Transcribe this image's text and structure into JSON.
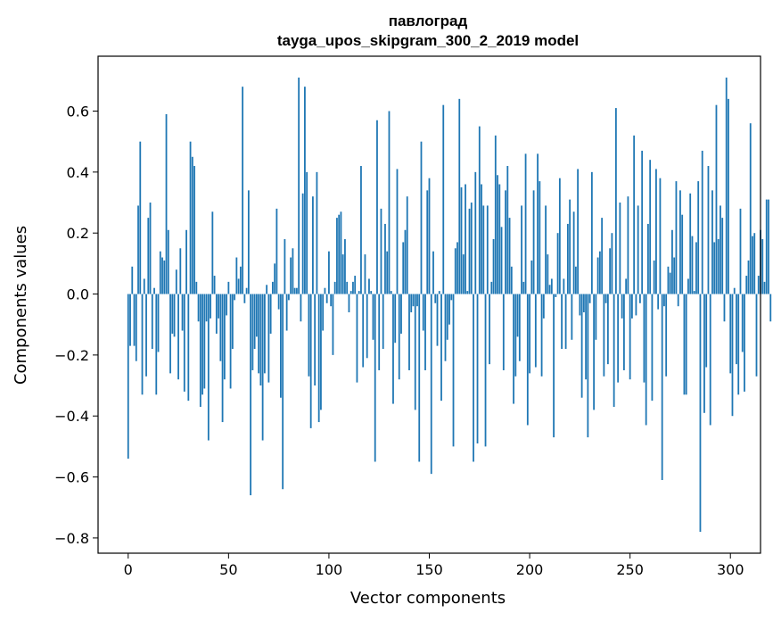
{
  "chart_data": {
    "type": "bar",
    "title": "павлоград",
    "subtitle": "tayga_upos_skipgram_300_2_2019 model",
    "xlabel": "Vector components",
    "ylabel": "Components values",
    "xlim": [
      -15,
      315
    ],
    "ylim": [
      -0.85,
      0.78
    ],
    "xticks": [
      0,
      50,
      100,
      150,
      200,
      250,
      300
    ],
    "xtick_labels": [
      "0",
      "50",
      "100",
      "150",
      "200",
      "250",
      "300"
    ],
    "yticks": [
      -0.8,
      -0.6,
      -0.4,
      -0.2,
      0.0,
      0.2,
      0.4,
      0.6
    ],
    "ytick_labels": [
      "−0.8",
      "−0.6",
      "−0.4",
      "−0.2",
      "0.0",
      "0.2",
      "0.4",
      "0.6"
    ],
    "bar_color": "#1f77b4",
    "grid": false,
    "values": [
      -0.54,
      -0.17,
      0.09,
      -0.17,
      -0.22,
      0.29,
      0.5,
      -0.33,
      0.05,
      -0.27,
      0.25,
      0.3,
      -0.18,
      0.02,
      -0.33,
      -0.19,
      0.14,
      0.12,
      0.11,
      0.59,
      0.21,
      -0.26,
      -0.13,
      -0.14,
      0.08,
      -0.28,
      0.15,
      -0.12,
      -0.32,
      0.21,
      -0.35,
      0.5,
      0.45,
      0.42,
      0.04,
      -0.09,
      -0.37,
      -0.33,
      -0.31,
      -0.09,
      -0.48,
      -0.08,
      0.27,
      0.06,
      -0.13,
      -0.08,
      -0.22,
      -0.42,
      -0.28,
      -0.07,
      0.04,
      -0.31,
      -0.18,
      -0.02,
      0.12,
      0.05,
      0.09,
      0.68,
      -0.03,
      0.02,
      0.34,
      -0.66,
      -0.25,
      -0.18,
      -0.14,
      -0.26,
      -0.3,
      -0.48,
      -0.26,
      0.03,
      -0.29,
      -0.13,
      0.04,
      0.1,
      0.28,
      -0.05,
      -0.34,
      -0.64,
      0.18,
      -0.12,
      -0.02,
      0.12,
      0.15,
      0.02,
      0.02,
      0.71,
      -0.09,
      0.33,
      0.68,
      0.4,
      -0.27,
      -0.44,
      0.32,
      -0.3,
      0.4,
      -0.42,
      -0.38,
      -0.12,
      0.02,
      -0.03,
      0.14,
      -0.04,
      -0.2,
      0.04,
      0.25,
      0.26,
      0.27,
      0.13,
      0.18,
      0.04,
      -0.06,
      0.01,
      0.04,
      0.06,
      -0.29,
      0.01,
      0.42,
      -0.24,
      0.13,
      -0.21,
      0.05,
      0.01,
      -0.15,
      -0.55,
      0.57,
      -0.25,
      0.28,
      -0.18,
      0.23,
      0.14,
      0.6,
      0.01,
      -0.36,
      -0.16,
      0.41,
      -0.28,
      -0.13,
      0.17,
      0.21,
      0.32,
      -0.25,
      -0.06,
      -0.04,
      -0.38,
      -0.04,
      -0.55,
      0.5,
      -0.12,
      -0.25,
      0.34,
      0.38,
      -0.59,
      0.14,
      -0.03,
      -0.17,
      0.01,
      -0.35,
      0.62,
      -0.22,
      -0.15,
      -0.1,
      -0.02,
      -0.5,
      0.15,
      0.17,
      0.64,
      0.35,
      0.13,
      0.36,
      0.01,
      0.28,
      0.3,
      -0.55,
      0.4,
      -0.49,
      0.55,
      0.36,
      0.29,
      -0.5,
      0.29,
      -0.23,
      0.04,
      0.18,
      0.52,
      0.39,
      0.36,
      0.22,
      -0.25,
      0.34,
      0.42,
      0.25,
      0.09,
      -0.36,
      -0.27,
      -0.14,
      -0.22,
      0.29,
      0.04,
      0.46,
      -0.43,
      -0.26,
      0.11,
      0.34,
      -0.24,
      0.46,
      0.37,
      -0.27,
      -0.08,
      0.29,
      0.13,
      0.03,
      0.05,
      -0.47,
      -0.01,
      0.2,
      0.38,
      -0.18,
      0.05,
      -0.18,
      0.23,
      0.31,
      -0.15,
      0.27,
      0.09,
      0.41,
      -0.07,
      -0.34,
      -0.06,
      -0.28,
      -0.47,
      -0.03,
      0.4,
      -0.38,
      -0.15,
      0.12,
      0.14,
      0.25,
      -0.27,
      -0.03,
      -0.23,
      0.15,
      0.2,
      -0.37,
      0.61,
      -0.29,
      0.3,
      -0.08,
      -0.25,
      0.05,
      0.32,
      -0.28,
      -0.08,
      0.52,
      -0.07,
      0.29,
      -0.03,
      0.47,
      -0.29,
      -0.43,
      0.23,
      0.44,
      -0.35,
      0.11,
      0.41,
      -0.05,
      0.38,
      -0.61,
      -0.04,
      -0.27,
      0.09,
      0.07,
      0.21,
      0.12,
      0.37,
      -0.04,
      0.34,
      0.26,
      -0.33,
      -0.33,
      0.05,
      0.33,
      0.19,
      0.01,
      0.17,
      0.37,
      -0.78,
      0.47,
      -0.39,
      -0.24,
      0.42,
      -0.43,
      0.34,
      0.17,
      0.62,
      0.18,
      0.29,
      0.25,
      -0.09,
      0.71,
      0.64,
      -0.26,
      -0.4,
      0.02,
      -0.23,
      -0.33,
      0.28,
      -0.19,
      -0.32,
      0.06,
      0.11,
      0.56,
      0.19,
      0.2,
      -0.27,
      0.06,
      0.21,
      0.18,
      0.04,
      0.31,
      0.31,
      -0.09
    ]
  }
}
